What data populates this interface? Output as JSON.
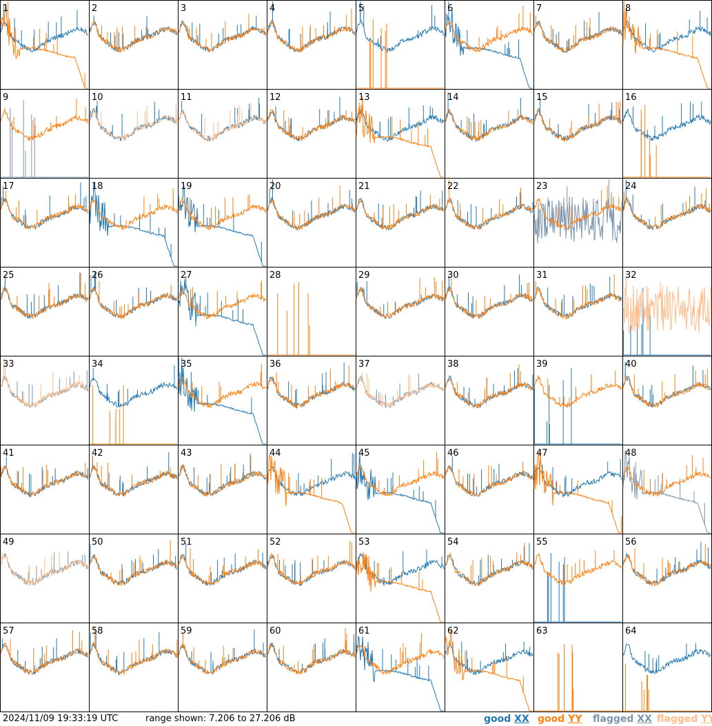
{
  "chart_data": {
    "type": "line",
    "panel_count": 64,
    "panel_labels": [
      "1",
      "2",
      "3",
      "4",
      "5",
      "6",
      "7",
      "8",
      "9",
      "10",
      "11",
      "12",
      "13",
      "14",
      "15",
      "16",
      "17",
      "18",
      "19",
      "20",
      "21",
      "22",
      "23",
      "24",
      "25",
      "26",
      "27",
      "28",
      "29",
      "30",
      "31",
      "32",
      "33",
      "34",
      "35",
      "36",
      "37",
      "38",
      "39",
      "40",
      "41",
      "42",
      "43",
      "44",
      "45",
      "46",
      "47",
      "48",
      "49",
      "50",
      "51",
      "52",
      "53",
      "54",
      "55",
      "56",
      "57",
      "58",
      "59",
      "60",
      "61",
      "62",
      "63",
      "64"
    ],
    "y_range_db": [
      7.206,
      27.206
    ],
    "series": [
      {
        "name": "good XX",
        "color": "#1f77b4"
      },
      {
        "name": "good YY",
        "color": "#ff7f0e"
      },
      {
        "name": "flagged XX",
        "color": "#7a94ad"
      },
      {
        "name": "flagged YY",
        "color": "#ffbb88"
      }
    ],
    "panel_series": [
      {
        "xx": "normal",
        "yy": "rolloff"
      },
      {
        "xx": "normal",
        "yy": "normal"
      },
      {
        "xx": "normal",
        "yy": "normal"
      },
      {
        "xx": "normal",
        "yy": "normal"
      },
      {
        "xx": "normal",
        "yy": "dead"
      },
      {
        "xx": "rolloff",
        "yy": "normal"
      },
      {
        "xx": "normal",
        "yy": "normal"
      },
      {
        "xx": "normal",
        "yy": "rolloff"
      },
      {
        "xx": "flag-dead",
        "yy": "normal"
      },
      {
        "xx": "normal",
        "yy": "flag-normal"
      },
      {
        "xx": "normal",
        "yy": "flag-normal"
      },
      {
        "xx": "normal",
        "yy": "normal"
      },
      {
        "xx": "normal",
        "yy": "rolloff"
      },
      {
        "xx": "normal",
        "yy": "normal"
      },
      {
        "xx": "normal",
        "yy": "normal"
      },
      {
        "xx": "normal",
        "yy": "dead"
      },
      {
        "xx": "normal",
        "yy": "normal"
      },
      {
        "xx": "rolloff",
        "yy": "normal"
      },
      {
        "xx": "rolloff",
        "yy": "normal"
      },
      {
        "xx": "normal",
        "yy": "normal"
      },
      {
        "xx": "normal",
        "yy": "normal"
      },
      {
        "xx": "normal",
        "yy": "normal"
      },
      {
        "xx": "flag-noisy",
        "yy": "normal"
      },
      {
        "xx": "normal",
        "yy": "normal"
      },
      {
        "xx": "normal",
        "yy": "normal"
      },
      {
        "xx": "normal",
        "yy": "normal"
      },
      {
        "xx": "rolloff",
        "yy": "normal"
      },
      {
        "xx": "none",
        "yy": "dead"
      },
      {
        "xx": "normal",
        "yy": "normal"
      },
      {
        "xx": "normal",
        "yy": "normal"
      },
      {
        "xx": "normal",
        "yy": "normal"
      },
      {
        "xx": "dead",
        "yy": "flag-noisy"
      },
      {
        "xx": "flag-normal",
        "yy": "flag-normal"
      },
      {
        "xx": "normal",
        "yy": "dead"
      },
      {
        "xx": "rolloff",
        "yy": "normal"
      },
      {
        "xx": "normal",
        "yy": "normal"
      },
      {
        "xx": "flag-normal",
        "yy": "flag-normal"
      },
      {
        "xx": "normal",
        "yy": "normal"
      },
      {
        "xx": "dead",
        "yy": "normal"
      },
      {
        "xx": "normal",
        "yy": "normal"
      },
      {
        "xx": "normal",
        "yy": "normal"
      },
      {
        "xx": "normal",
        "yy": "normal"
      },
      {
        "xx": "normal",
        "yy": "normal"
      },
      {
        "xx": "normal",
        "yy": "rolloff"
      },
      {
        "xx": "rolloff",
        "yy": "normal"
      },
      {
        "xx": "normal",
        "yy": "normal"
      },
      {
        "xx": "normal",
        "yy": "rolloff"
      },
      {
        "xx": "flag-rolloff",
        "yy": "normal"
      },
      {
        "xx": "flag-normal",
        "yy": "flag-normal"
      },
      {
        "xx": "normal",
        "yy": "normal"
      },
      {
        "xx": "normal",
        "yy": "normal"
      },
      {
        "xx": "normal",
        "yy": "normal"
      },
      {
        "xx": "normal",
        "yy": "rolloff"
      },
      {
        "xx": "normal",
        "yy": "normal"
      },
      {
        "xx": "dead",
        "yy": "normal"
      },
      {
        "xx": "normal",
        "yy": "normal"
      },
      {
        "xx": "normal",
        "yy": "normal"
      },
      {
        "xx": "normal",
        "yy": "normal"
      },
      {
        "xx": "normal",
        "yy": "normal"
      },
      {
        "xx": "normal",
        "yy": "normal"
      },
      {
        "xx": "rolloff",
        "yy": "normal"
      },
      {
        "xx": "normal",
        "yy": "rolloff"
      },
      {
        "xx": "none",
        "yy": "dead"
      },
      {
        "xx": "normal",
        "yy": "dead"
      }
    ]
  },
  "footer": {
    "timestamp": "2024/11/09 19:33:19 UTC",
    "range_text": "range shown: 7.206 to 27.206 dB"
  },
  "legend": [
    {
      "word": "good",
      "pol": "XX",
      "color": "#1f77b4"
    },
    {
      "word": "good",
      "pol": "YY",
      "color": "#ff7f0e"
    },
    {
      "word": "flagged",
      "pol": "XX",
      "color": "#7a94ad"
    },
    {
      "word": "flagged",
      "pol": "YY",
      "color": "#ffbb88"
    }
  ]
}
